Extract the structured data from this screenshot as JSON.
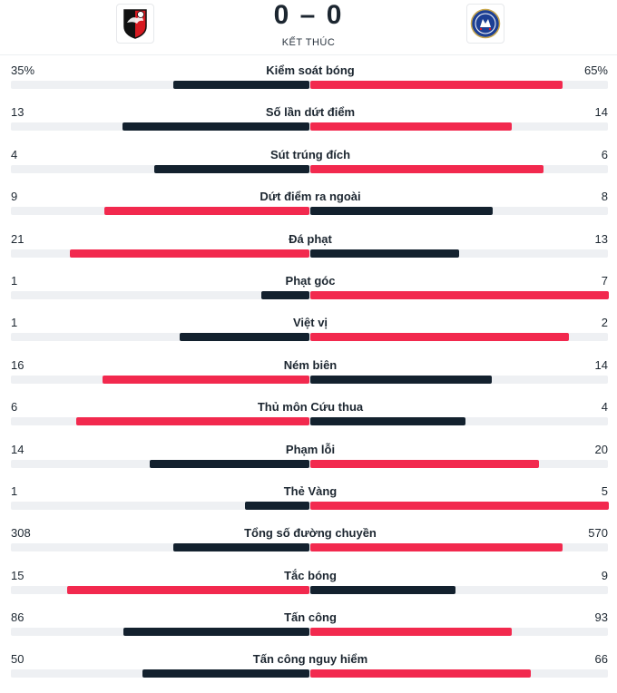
{
  "match": {
    "home_score": "0",
    "separator": "–",
    "away_score": "0",
    "status": "KẾT THÚC"
  },
  "colors": {
    "higher": "#f2294e",
    "lower": "#13212e",
    "track": "#eef0f3"
  },
  "stats": [
    {
      "label": "Kiểm soát bóng",
      "home": "35%",
      "away": "65%",
      "home_value": 35,
      "away_value": 65
    },
    {
      "label": "Số lần dứt điểm",
      "home": "13",
      "away": "14",
      "home_value": 13,
      "away_value": 14
    },
    {
      "label": "Sút trúng đích",
      "home": "4",
      "away": "6",
      "home_value": 4,
      "away_value": 6
    },
    {
      "label": "Dứt điểm ra ngoài",
      "home": "9",
      "away": "8",
      "home_value": 9,
      "away_value": 8
    },
    {
      "label": "Đá phạt",
      "home": "21",
      "away": "13",
      "home_value": 21,
      "away_value": 13
    },
    {
      "label": "Phạt góc",
      "home": "1",
      "away": "7",
      "home_value": 1,
      "away_value": 7
    },
    {
      "label": "Việt vị",
      "home": "1",
      "away": "2",
      "home_value": 1,
      "away_value": 2
    },
    {
      "label": "Ném biên",
      "home": "16",
      "away": "14",
      "home_value": 16,
      "away_value": 14
    },
    {
      "label": "Thủ môn Cứu thua",
      "home": "6",
      "away": "4",
      "home_value": 6,
      "away_value": 4
    },
    {
      "label": "Phạm lỗi",
      "home": "14",
      "away": "20",
      "home_value": 14,
      "away_value": 20
    },
    {
      "label": "Thẻ Vàng",
      "home": "1",
      "away": "5",
      "home_value": 1,
      "away_value": 5
    },
    {
      "label": "Tổng số đường chuyền",
      "home": "308",
      "away": "570",
      "home_value": 308,
      "away_value": 570
    },
    {
      "label": "Tắc bóng",
      "home": "15",
      "away": "9",
      "home_value": 15,
      "away_value": 9
    },
    {
      "label": "Tấn công",
      "home": "86",
      "away": "93",
      "home_value": 86,
      "away_value": 93
    },
    {
      "label": "Tấn công nguy hiểm",
      "home": "50",
      "away": "66",
      "home_value": 50,
      "away_value": 66
    }
  ]
}
